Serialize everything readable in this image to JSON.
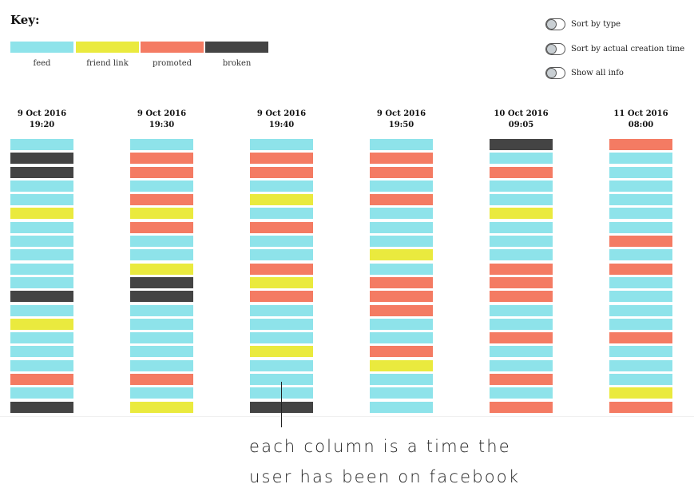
{
  "key": {
    "title": "Key:",
    "items": [
      {
        "label": "feed",
        "color": "#8ee3ea"
      },
      {
        "label": "friend link",
        "color": "#eaea3e"
      },
      {
        "label": "promoted",
        "color": "#f47b63"
      },
      {
        "label": "broken",
        "color": "#444444"
      }
    ]
  },
  "controls": [
    {
      "label": "Sort by type",
      "checked": false
    },
    {
      "label": "Sort by actual creation time",
      "checked": false
    },
    {
      "label": "Show all info",
      "checked": false
    }
  ],
  "colors": {
    "feed": "#8ee3ea",
    "friend": "#eaea3e",
    "promoted": "#f47b63",
    "broken": "#444444"
  },
  "columns": [
    {
      "date": "9 Oct 2016",
      "time": "19:20",
      "cells": [
        "feed",
        "broken",
        "broken",
        "feed",
        "feed",
        "friend",
        "feed",
        "feed",
        "feed",
        "feed",
        "feed",
        "broken",
        "feed",
        "friend",
        "feed",
        "feed",
        "feed",
        "promoted",
        "feed",
        "broken"
      ]
    },
    {
      "date": "9 Oct 2016",
      "time": "19:30",
      "cells": [
        "feed",
        "promoted",
        "promoted",
        "feed",
        "promoted",
        "friend",
        "promoted",
        "feed",
        "feed",
        "friend",
        "broken",
        "broken",
        "feed",
        "feed",
        "feed",
        "feed",
        "feed",
        "promoted",
        "feed",
        "friend"
      ]
    },
    {
      "date": "9 Oct 2016",
      "time": "19:40",
      "cells": [
        "feed",
        "promoted",
        "promoted",
        "feed",
        "friend",
        "feed",
        "promoted",
        "feed",
        "feed",
        "promoted",
        "friend",
        "promoted",
        "feed",
        "feed",
        "feed",
        "friend",
        "feed",
        "feed",
        "feed",
        "broken"
      ]
    },
    {
      "date": "9 Oct 2016",
      "time": "19:50",
      "cells": [
        "feed",
        "promoted",
        "promoted",
        "feed",
        "promoted",
        "feed",
        "feed",
        "feed",
        "friend",
        "feed",
        "promoted",
        "promoted",
        "promoted",
        "feed",
        "feed",
        "promoted",
        "friend",
        "feed",
        "feed",
        "feed"
      ]
    },
    {
      "date": "10 Oct 2016",
      "time": "09:05",
      "cells": [
        "broken",
        "feed",
        "promoted",
        "feed",
        "feed",
        "friend",
        "feed",
        "feed",
        "feed",
        "promoted",
        "promoted",
        "promoted",
        "feed",
        "feed",
        "promoted",
        "feed",
        "feed",
        "promoted",
        "feed",
        "promoted"
      ]
    },
    {
      "date": "11 Oct 2016",
      "time": "08:00",
      "cells": [
        "promoted",
        "feed",
        "feed",
        "feed",
        "feed",
        "feed",
        "feed",
        "promoted",
        "feed",
        "promoted",
        "feed",
        "feed",
        "feed",
        "feed",
        "promoted",
        "feed",
        "feed",
        "feed",
        "friend",
        "promoted"
      ]
    }
  ],
  "annotation": {
    "line1": "each column is a time the",
    "line2": "user has been on facebook"
  }
}
